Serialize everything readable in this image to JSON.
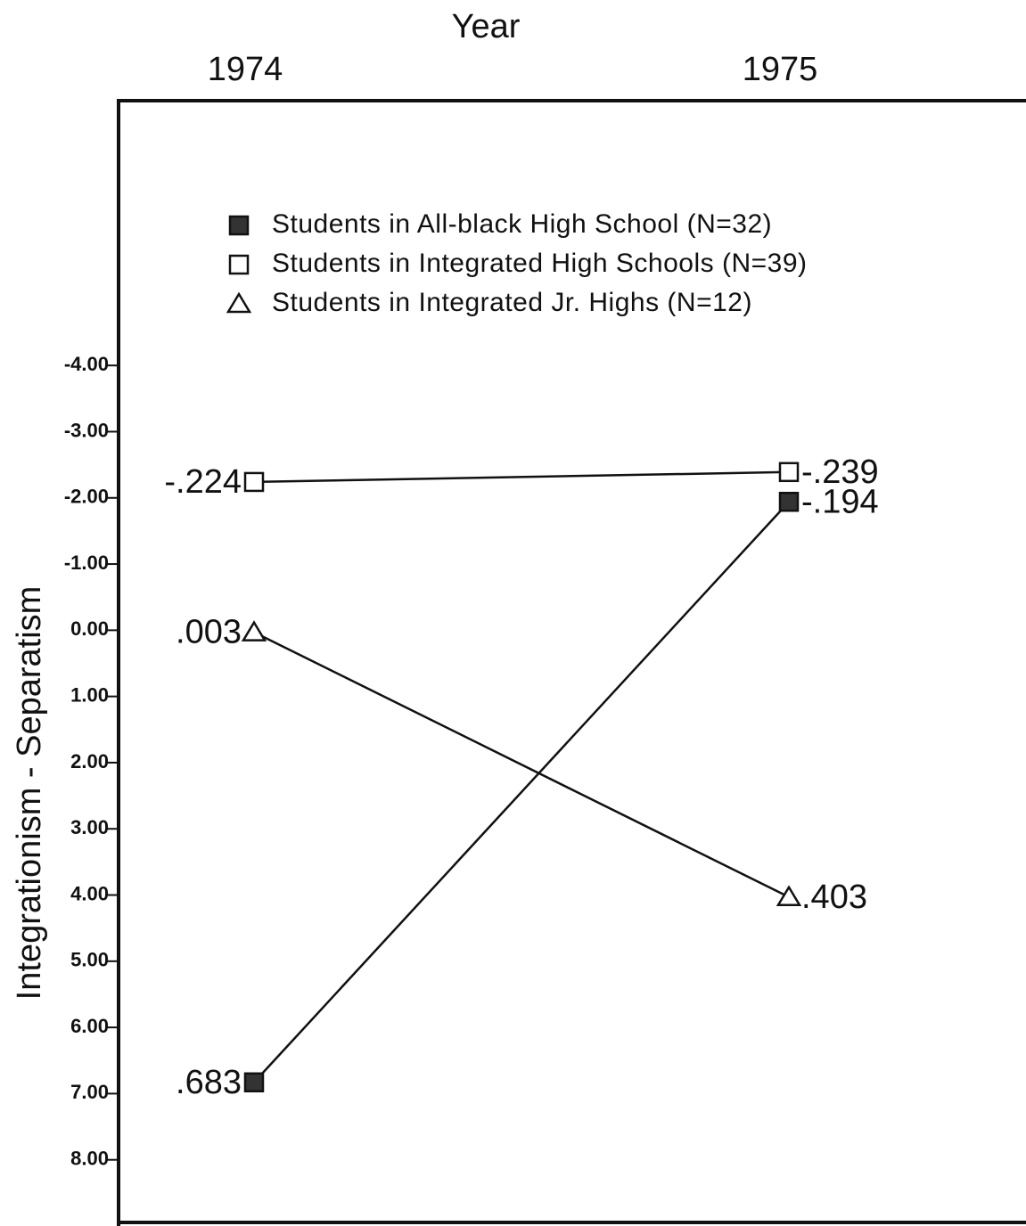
{
  "chart_data": {
    "type": "line",
    "x_axis_title": "Year",
    "y_axis_title": "Integrationism - Separatism",
    "categories": [
      "1974",
      "1975"
    ],
    "series": [
      {
        "name": "Students in All-black High School (N=32)",
        "color": "#333333",
        "marker": "square-filled",
        "values": [
          6.83,
          -1.94
        ],
        "value_labels": [
          ".683",
          "-.194"
        ]
      },
      {
        "name": "Students in Integrated High Schools (N=39)",
        "color": "#111111",
        "marker": "square",
        "values": [
          -2.24,
          -2.39
        ],
        "value_labels": [
          "-.224",
          "-.239"
        ]
      },
      {
        "name": "Students in Integrated Jr. Highs (N=12)",
        "color": "#111111",
        "marker": "triangle",
        "values": [
          0.03,
          4.03
        ],
        "value_labels": [
          ".003",
          ".403"
        ]
      }
    ],
    "ylim": [
      -8,
      9
    ],
    "y_inverted": true,
    "yticks": [
      {
        "value": -4,
        "label": "-4.00"
      },
      {
        "value": -3,
        "label": "-3.00"
      },
      {
        "value": -2,
        "label": "-2.00"
      },
      {
        "value": -1,
        "label": "-1.00"
      },
      {
        "value": 0,
        "label": "0.00"
      },
      {
        "value": 1,
        "label": "1.00"
      },
      {
        "value": 2,
        "label": "2.00"
      },
      {
        "value": 3,
        "label": "3.00"
      },
      {
        "value": 4,
        "label": "4.00"
      },
      {
        "value": 5,
        "label": "5.00"
      },
      {
        "value": 6,
        "label": "6.00"
      },
      {
        "value": 7,
        "label": "7.00"
      },
      {
        "value": 8,
        "label": "8.00"
      }
    ],
    "grid": false
  }
}
